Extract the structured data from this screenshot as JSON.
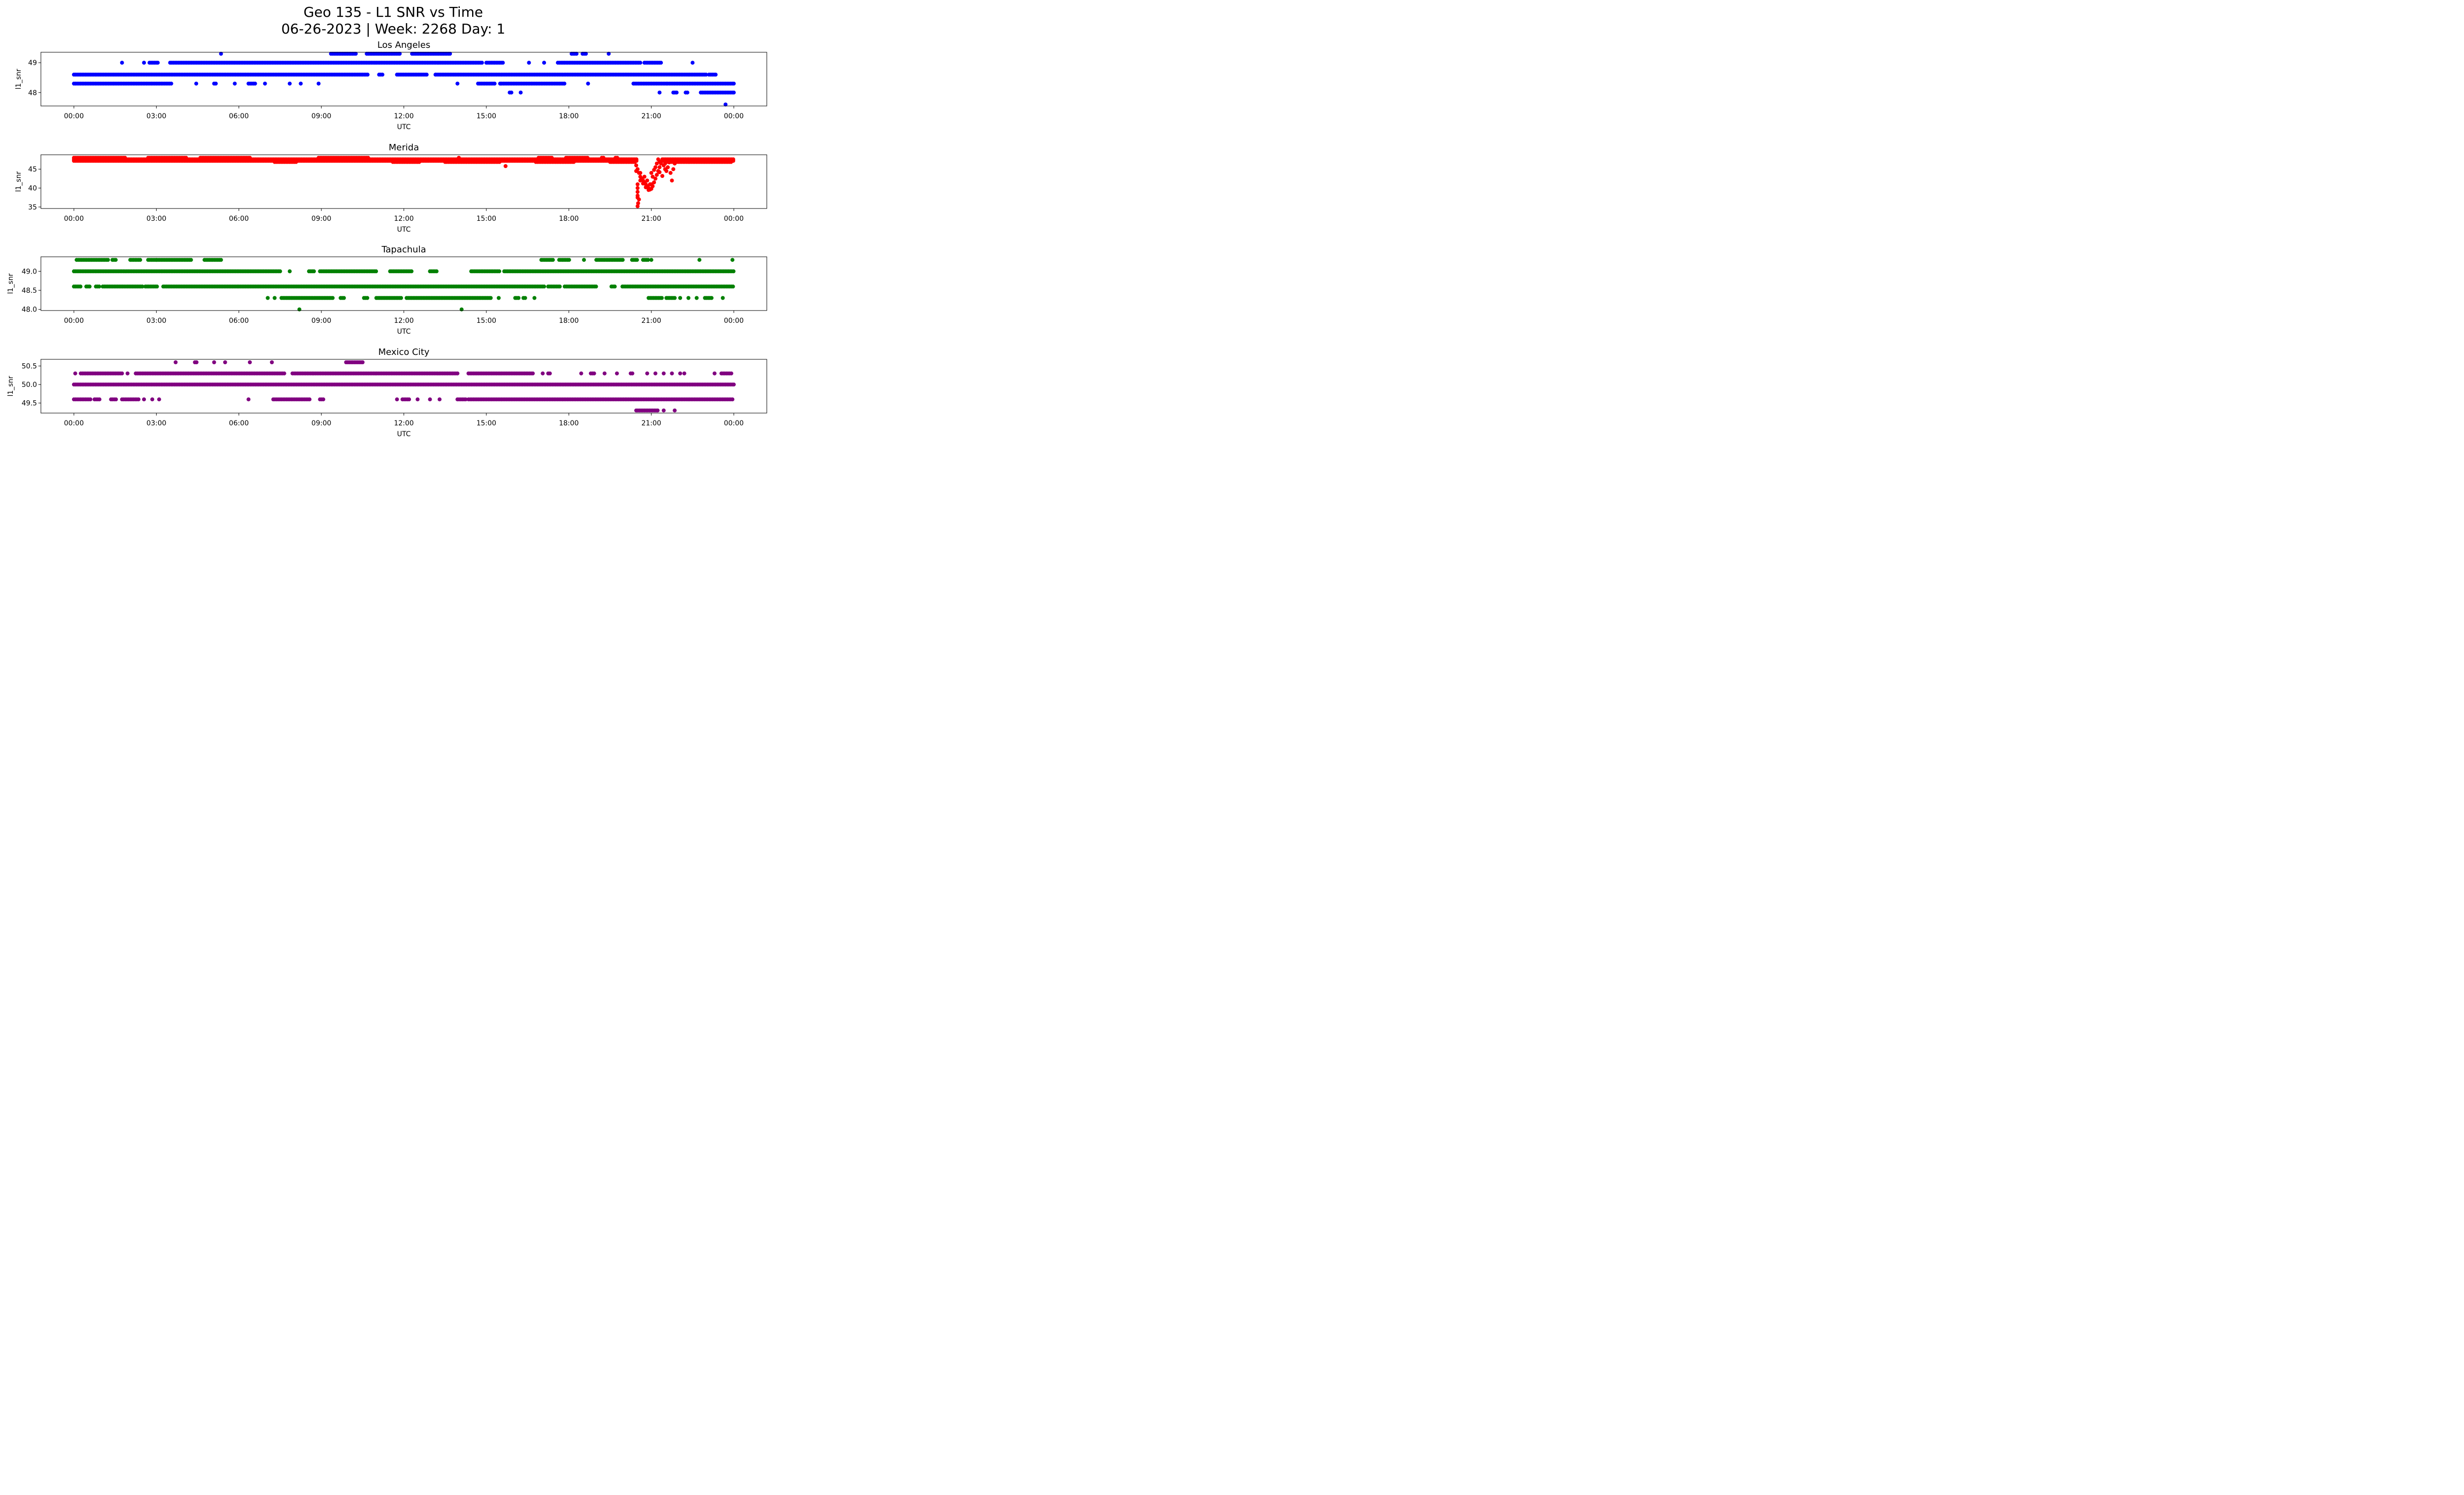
{
  "title_line1": "Geo 135 - L1 SNR vs Time",
  "title_line2": "06-26-2023 | Week: 2268 Day: 1",
  "chart_data": [
    {
      "type": "scatter",
      "title": "Los Angeles",
      "xlabel": "UTC",
      "ylabel": "l1_snr",
      "color": "#0000ff",
      "xlim_hours": [
        -1.2,
        25.2
      ],
      "ylim": [
        47.55,
        49.35
      ],
      "yticks": [
        48,
        49
      ],
      "ytick_labels": [
        "48",
        "49"
      ],
      "xticks_hours": [
        0,
        3,
        6,
        9,
        12,
        15,
        18,
        21,
        24
      ],
      "xtick_labels": [
        "00:00",
        "03:00",
        "06:00",
        "09:00",
        "12:00",
        "15:00",
        "18:00",
        "21:00",
        "00:00"
      ],
      "runs": [
        {
          "y": 49.3,
          "ranges": [
            [
              5.35,
              5.35
            ],
            [
              9.35,
              10.3
            ],
            [
              10.65,
              11.9
            ],
            [
              12.3,
              13.7
            ],
            [
              18.1,
              18.3
            ],
            [
              18.5,
              18.65
            ],
            [
              19.45,
              19.45
            ]
          ]
        },
        {
          "y": 49.0,
          "ranges": [
            [
              1.75,
              1.75
            ],
            [
              2.55,
              2.55
            ],
            [
              2.75,
              3.05
            ],
            [
              3.5,
              14.85
            ],
            [
              15.0,
              15.6
            ],
            [
              16.55,
              16.55
            ],
            [
              17.1,
              17.1
            ],
            [
              17.6,
              20.6
            ],
            [
              20.75,
              21.4
            ],
            [
              22.5,
              22.5
            ]
          ]
        },
        {
          "y": 48.6,
          "ranges": [
            [
              0,
              10.7
            ],
            [
              11.1,
              11.25
            ],
            [
              11.75,
              12.85
            ],
            [
              13.15,
              23.0
            ],
            [
              23.1,
              23.35
            ]
          ]
        },
        {
          "y": 48.3,
          "ranges": [
            [
              0,
              3.55
            ],
            [
              4.45,
              4.45
            ],
            [
              5.1,
              5.2
            ],
            [
              5.85,
              5.85
            ],
            [
              6.35,
              6.6
            ],
            [
              6.95,
              6.95
            ],
            [
              7.85,
              7.85
            ],
            [
              8.25,
              8.25
            ],
            [
              8.9,
              8.9
            ],
            [
              13.95,
              13.95
            ],
            [
              14.7,
              15.35
            ],
            [
              15.5,
              17.85
            ],
            [
              18.7,
              18.7
            ],
            [
              20.35,
              21.55
            ],
            [
              21.6,
              24
            ]
          ]
        },
        {
          "y": 48.0,
          "ranges": [
            [
              15.85,
              15.95
            ],
            [
              16.25,
              16.25
            ],
            [
              21.3,
              21.3
            ],
            [
              21.8,
              21.95
            ],
            [
              22.25,
              22.35
            ],
            [
              22.8,
              24
            ]
          ]
        },
        {
          "y": 47.6,
          "ranges": [
            [
              23.7,
              23.7
            ]
          ]
        }
      ]
    },
    {
      "type": "scatter",
      "title": "Merida",
      "xlabel": "UTC",
      "ylabel": "l1_snr",
      "color": "#ff0000",
      "xlim_hours": [
        -1.2,
        25.2
      ],
      "ylim": [
        34.6,
        48.8
      ],
      "yticks": [
        35,
        40,
        45
      ],
      "ytick_labels": [
        "35",
        "40",
        "45"
      ],
      "xticks_hours": [
        0,
        3,
        6,
        9,
        12,
        15,
        18,
        21,
        24
      ],
      "xtick_labels": [
        "00:00",
        "03:00",
        "06:00",
        "09:00",
        "12:00",
        "15:00",
        "18:00",
        "21:00",
        "00:00"
      ],
      "runs": [
        {
          "y": 48.0,
          "ranges": [
            [
              0,
              1.9
            ],
            [
              2.7,
              4.1
            ],
            [
              4.6,
              6.4
            ],
            [
              8.9,
              10.7
            ],
            [
              14.0,
              14.0
            ],
            [
              16.9,
              17.4
            ],
            [
              17.9,
              18.7
            ],
            [
              19.2,
              19.3
            ],
            [
              19.7,
              19.8
            ]
          ]
        },
        {
          "y": 47.6,
          "ranges": [
            [
              0,
              20.5
            ],
            [
              21.4,
              24
            ]
          ]
        },
        {
          "y": 47.2,
          "ranges": [
            [
              0,
              20.5
            ],
            [
              21.4,
              24
            ]
          ]
        },
        {
          "y": 46.9,
          "ranges": [
            [
              7.3,
              8.1
            ],
            [
              11.6,
              12.6
            ],
            [
              13.5,
              15.5
            ],
            [
              16.8,
              18.2
            ],
            [
              19.5,
              20.4
            ],
            [
              21.5,
              23.9
            ]
          ]
        },
        {
          "y": 45.8,
          "ranges": [
            [
              15.7,
              15.75
            ]
          ]
        }
      ],
      "dip_points": [
        [
          20.4,
          47.0
        ],
        [
          20.45,
          46.0
        ],
        [
          20.5,
          45.0
        ],
        [
          20.55,
          44.0
        ],
        [
          20.6,
          43.0
        ],
        [
          20.65,
          42.5
        ],
        [
          20.7,
          42.0
        ],
        [
          20.75,
          41.5
        ],
        [
          20.8,
          41.0
        ],
        [
          20.85,
          40.5
        ],
        [
          20.9,
          40.0
        ],
        [
          20.95,
          39.6
        ],
        [
          21.0,
          39.8
        ],
        [
          21.05,
          40.5
        ],
        [
          21.1,
          41.5
        ],
        [
          21.15,
          42.5
        ],
        [
          21.2,
          43.5
        ],
        [
          21.25,
          44.5
        ],
        [
          21.3,
          45.5
        ],
        [
          21.35,
          46.5
        ],
        [
          21.4,
          47.2
        ],
        [
          20.5,
          41.0
        ],
        [
          20.5,
          40.0
        ],
        [
          20.5,
          39.0
        ],
        [
          20.5,
          38.0
        ],
        [
          20.5,
          37.5
        ],
        [
          20.55,
          37.0
        ],
        [
          20.52,
          36.0
        ],
        [
          20.5,
          35.2
        ],
        [
          20.6,
          42.0
        ],
        [
          20.7,
          41.2
        ],
        [
          20.8,
          40.2
        ],
        [
          20.9,
          39.5
        ],
        [
          21.0,
          41.0
        ],
        [
          21.05,
          43.0
        ],
        [
          21.1,
          44.8
        ],
        [
          21.2,
          46.5
        ],
        [
          21.25,
          47.6
        ],
        [
          21.3,
          47.0
        ],
        [
          21.45,
          46.0
        ],
        [
          21.5,
          45.0
        ],
        [
          21.55,
          44.5
        ],
        [
          21.6,
          45.5
        ],
        [
          21.65,
          46.8
        ],
        [
          21.7,
          44.0
        ],
        [
          21.75,
          42.0
        ],
        [
          21.8,
          45.0
        ],
        [
          21.85,
          46.5
        ],
        [
          20.45,
          44.5
        ],
        [
          20.6,
          44.0
        ],
        [
          20.75,
          43.0
        ],
        [
          20.85,
          42.0
        ],
        [
          20.95,
          41.0
        ],
        [
          21.0,
          44.0
        ],
        [
          21.15,
          45.5
        ],
        [
          21.3,
          44.2
        ],
        [
          21.4,
          43.2
        ],
        [
          21.5,
          46.5
        ],
        [
          21.6,
          47.0
        ]
      ]
    },
    {
      "type": "scatter",
      "title": "Tapachula",
      "xlabel": "UTC",
      "ylabel": "l1_snr",
      "color": "#008000",
      "xlim_hours": [
        -1.2,
        25.2
      ],
      "ylim": [
        47.97,
        49.38
      ],
      "yticks": [
        48.0,
        48.5,
        49.0
      ],
      "ytick_labels": [
        "48.0",
        "48.5",
        "49.0"
      ],
      "xticks_hours": [
        0,
        3,
        6,
        9,
        12,
        15,
        18,
        21,
        24
      ],
      "xtick_labels": [
        "00:00",
        "03:00",
        "06:00",
        "09:00",
        "12:00",
        "15:00",
        "18:00",
        "21:00",
        "00:00"
      ],
      "runs": [
        {
          "y": 49.3,
          "ranges": [
            [
              0.1,
              1.25
            ],
            [
              1.4,
              1.55
            ],
            [
              2.05,
              2.45
            ],
            [
              2.7,
              3.0
            ],
            [
              3.0,
              4.3
            ],
            [
              4.75,
              5.35
            ],
            [
              17.0,
              17.45
            ],
            [
              17.65,
              18.05
            ],
            [
              18.55,
              18.55
            ],
            [
              19.0,
              20.0
            ],
            [
              20.3,
              20.5
            ],
            [
              20.7,
              20.9
            ],
            [
              21.0,
              21.0
            ],
            [
              22.75,
              22.75
            ],
            [
              23.95,
              23.95
            ]
          ]
        },
        {
          "y": 49.0,
          "ranges": [
            [
              0,
              7.55
            ],
            [
              7.85,
              7.85
            ],
            [
              8.55,
              8.75
            ],
            [
              8.95,
              11.0
            ],
            [
              11.5,
              12.3
            ],
            [
              12.95,
              13.2
            ],
            [
              14.45,
              15.5
            ],
            [
              15.65,
              24
            ]
          ]
        },
        {
          "y": 48.6,
          "ranges": [
            [
              0,
              0.25
            ],
            [
              0.45,
              0.6
            ],
            [
              0.8,
              0.95
            ],
            [
              1.05,
              2.5
            ],
            [
              2.6,
              3.05
            ],
            [
              3.25,
              6.0
            ],
            [
              6.0,
              17.1
            ],
            [
              17.25,
              17.7
            ],
            [
              17.85,
              19.0
            ],
            [
              19.55,
              19.7
            ],
            [
              19.95,
              24
            ]
          ]
        },
        {
          "y": 48.3,
          "ranges": [
            [
              7.05,
              7.05
            ],
            [
              7.3,
              7.35
            ],
            [
              7.55,
              9.45
            ],
            [
              9.7,
              9.85
            ],
            [
              10.55,
              10.7
            ],
            [
              11.0,
              11.95
            ],
            [
              12.1,
              15.2
            ],
            [
              15.45,
              15.45
            ],
            [
              16.05,
              16.2
            ],
            [
              16.35,
              16.45
            ],
            [
              16.75,
              16.75
            ],
            [
              20.9,
              21.4
            ],
            [
              21.55,
              21.85
            ],
            [
              22.05,
              22.1
            ],
            [
              22.35,
              22.35
            ],
            [
              22.65,
              22.65
            ],
            [
              22.95,
              23.2
            ],
            [
              23.6,
              23.6
            ]
          ]
        },
        {
          "y": 48.0,
          "ranges": [
            [
              8.2,
              8.2
            ],
            [
              14.1,
              14.1
            ]
          ]
        }
      ]
    },
    {
      "type": "scatter",
      "title": "Mexico City",
      "xlabel": "UTC",
      "ylabel": "l1_snr",
      "color": "#800080",
      "xlim_hours": [
        -1.2,
        25.2
      ],
      "ylim": [
        49.23,
        50.68
      ],
      "yticks": [
        49.5,
        50.0,
        50.5
      ],
      "ytick_labels": [
        "49.5",
        "50.0",
        "50.5"
      ],
      "xticks_hours": [
        0,
        3,
        6,
        9,
        12,
        15,
        18,
        21,
        24
      ],
      "xtick_labels": [
        "00:00",
        "03:00",
        "06:00",
        "09:00",
        "12:00",
        "15:00",
        "18:00",
        "21:00",
        "00:00"
      ],
      "runs": [
        {
          "y": 50.6,
          "ranges": [
            [
              3.7,
              3.7
            ],
            [
              4.4,
              4.5
            ],
            [
              5.1,
              5.1
            ],
            [
              5.5,
              5.5
            ],
            [
              6.4,
              6.4
            ],
            [
              7.2,
              7.2
            ],
            [
              9.9,
              10.55
            ]
          ]
        },
        {
          "y": 50.3,
          "ranges": [
            [
              0.05,
              0.05
            ],
            [
              0.25,
              1.75
            ],
            [
              1.95,
              1.95
            ],
            [
              2.25,
              7.7
            ],
            [
              7.95,
              14.0
            ],
            [
              14.35,
              16.7
            ],
            [
              17.05,
              17.05
            ],
            [
              17.25,
              17.35
            ],
            [
              18.45,
              18.45
            ],
            [
              18.8,
              18.95
            ],
            [
              19.3,
              19.3
            ],
            [
              19.75,
              19.75
            ],
            [
              20.25,
              20.35
            ],
            [
              20.85,
              20.85
            ],
            [
              21.15,
              21.15
            ],
            [
              21.45,
              21.45
            ],
            [
              21.75,
              21.75
            ],
            [
              22.05,
              22.05
            ],
            [
              22.2,
              22.2
            ],
            [
              23.3,
              23.3
            ],
            [
              23.55,
              23.95
            ]
          ]
        },
        {
          "y": 50.0,
          "ranges": [
            [
              0,
              24
            ]
          ]
        },
        {
          "y": 49.6,
          "ranges": [
            [
              0,
              0.65
            ],
            [
              0.75,
              0.95
            ],
            [
              1.35,
              1.55
            ],
            [
              1.75,
              2.35
            ],
            [
              2.55,
              2.55
            ],
            [
              2.85,
              2.85
            ],
            [
              3.1,
              3.1
            ],
            [
              6.35,
              6.35
            ],
            [
              7.25,
              8.6
            ],
            [
              8.95,
              9.1
            ],
            [
              11.75,
              11.75
            ],
            [
              11.95,
              12.2
            ],
            [
              12.5,
              12.5
            ],
            [
              12.95,
              12.95
            ],
            [
              13.3,
              13.3
            ],
            [
              13.95,
              14.3
            ],
            [
              14.35,
              24
            ]
          ]
        },
        {
          "y": 49.3,
          "ranges": [
            [
              20.45,
              21.25
            ],
            [
              21.45,
              21.45
            ],
            [
              21.85,
              21.85
            ]
          ]
        }
      ]
    }
  ]
}
